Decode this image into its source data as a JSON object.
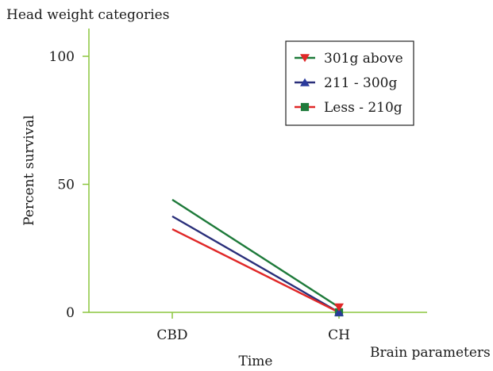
{
  "chart_data": {
    "type": "line",
    "title": "Head weight categories",
    "xlabel": "Time",
    "x_extra_label": "Brain parameters",
    "ylabel": "Percent survival",
    "categories": [
      "CBD",
      "CH"
    ],
    "yticks": [
      0,
      50,
      100
    ],
    "ylim": [
      0,
      110
    ],
    "grid": false,
    "legend_position": "top-right",
    "series": [
      {
        "name": "301g above",
        "values": [
          44,
          2
        ],
        "color": "#1e7a3a",
        "marker": "triangle-down",
        "marker_color": "#e02828"
      },
      {
        "name": "211 - 300g",
        "values": [
          37.5,
          0
        ],
        "color": "#2a2f7a",
        "marker": "triangle-up",
        "marker_color": "#2a3a9c"
      },
      {
        "name": "Less - 210g",
        "values": [
          32.5,
          0
        ],
        "color": "#e02828",
        "marker": "square",
        "marker_color": "#1e7a3a"
      }
    ],
    "colors": {
      "axis": "#8cc63f",
      "legend_border": "#222222"
    }
  }
}
